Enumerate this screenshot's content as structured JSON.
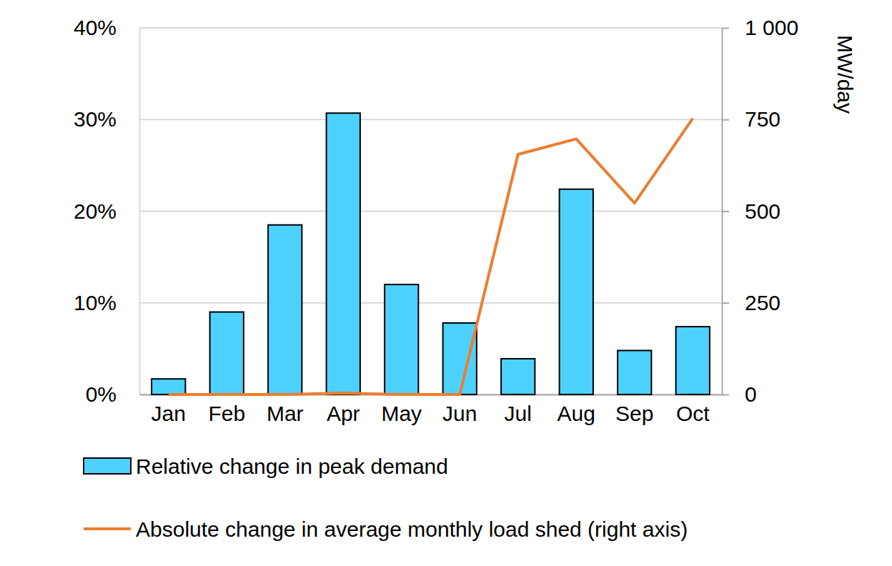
{
  "chart_data": {
    "type": "bar",
    "categories": [
      "Jan",
      "Feb",
      "Mar",
      "Apr",
      "May",
      "Jun",
      "Jul",
      "Aug",
      "Sep",
      "Oct"
    ],
    "series": [
      {
        "name": "Relative change in peak demand",
        "type": "bar",
        "axis": "y",
        "color": "#4dd2ff",
        "values": [
          1.7,
          9.0,
          18.5,
          30.7,
          12.0,
          7.8,
          3.9,
          22.4,
          4.8,
          7.4
        ]
      },
      {
        "name": "Absolute change in average monthly load shed (right axis)",
        "type": "line",
        "axis": "y2",
        "color": "#ed7d31",
        "values": [
          0,
          0,
          0,
          4,
          0,
          0,
          655,
          697,
          522,
          753
        ]
      }
    ],
    "ylim": [
      0,
      40
    ],
    "yticks": [
      {
        "value": 0,
        "label": "0%"
      },
      {
        "value": 10,
        "label": "10%"
      },
      {
        "value": 20,
        "label": "20%"
      },
      {
        "value": 30,
        "label": "30%"
      },
      {
        "value": 40,
        "label": "40%"
      }
    ],
    "y2lim": [
      0,
      1000
    ],
    "y2ticks": [
      0,
      250,
      500,
      750,
      {
        "value": 1000,
        "label": "1 000"
      }
    ],
    "y2_label": "MW/day",
    "grid": true,
    "legend": "bottom"
  }
}
